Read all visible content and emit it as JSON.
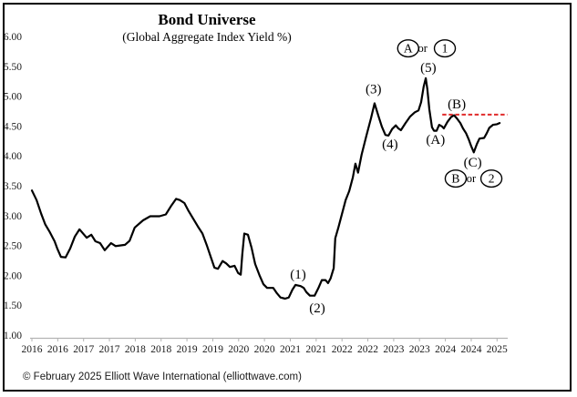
{
  "header": {
    "title": "Bond Universe",
    "subtitle": "(Global Aggregate Index Yield %)"
  },
  "footer": {
    "copyright": "© February 2025 Elliott Wave International (elliottwave.com)"
  },
  "colors": {
    "line": "#000000",
    "resistance": "#e02b2b",
    "axis": "#b3b3b3",
    "text": "#1a1a1a"
  },
  "chart_data": {
    "type": "line",
    "title": "Bond Universe",
    "subtitle": "(Global Aggregate Index Yield %)",
    "series_name": "Global Aggregate Index Yield %",
    "ylim": [
      1.0,
      6.0
    ],
    "xlim": [
      2016.0,
      2025.2
    ],
    "grid": false,
    "legend": "none",
    "y_tick_labels": [
      "6.00",
      "5.50",
      "5.00",
      "4.50",
      "4.00",
      "3.50",
      "3.00",
      "2.50",
      "2.00",
      "1.50",
      "1.00"
    ],
    "y_tick_values": [
      6.0,
      5.5,
      5.0,
      4.5,
      4.0,
      3.5,
      3.0,
      2.5,
      2.0,
      1.5,
      1.0
    ],
    "x_tick_labels": [
      "2016",
      "2016",
      "2017",
      "2017",
      "2018",
      "2018",
      "2019",
      "2019",
      "2020",
      "2020",
      "2021",
      "2021",
      "2022",
      "2022",
      "2023",
      "2023",
      "2024",
      "2024",
      "2025"
    ],
    "x_tick_values": [
      2016,
      2016.5,
      2017,
      2017.5,
      2018,
      2018.5,
      2019,
      2019.5,
      2020,
      2020.5,
      2021,
      2021.5,
      2022,
      2022.5,
      2023,
      2023.5,
      2024,
      2024.5,
      2025
    ],
    "points": [
      [
        2016.0,
        3.42
      ],
      [
        2016.09,
        3.26
      ],
      [
        2016.18,
        3.03
      ],
      [
        2016.26,
        2.85
      ],
      [
        2016.35,
        2.72
      ],
      [
        2016.44,
        2.57
      ],
      [
        2016.49,
        2.45
      ],
      [
        2016.56,
        2.31
      ],
      [
        2016.65,
        2.3
      ],
      [
        2016.74,
        2.45
      ],
      [
        2016.83,
        2.65
      ],
      [
        2016.92,
        2.77
      ],
      [
        2017.01,
        2.68
      ],
      [
        2017.06,
        2.63
      ],
      [
        2017.15,
        2.68
      ],
      [
        2017.23,
        2.57
      ],
      [
        2017.32,
        2.54
      ],
      [
        2017.41,
        2.42
      ],
      [
        2017.53,
        2.54
      ],
      [
        2017.62,
        2.49
      ],
      [
        2017.8,
        2.51
      ],
      [
        2017.89,
        2.58
      ],
      [
        2017.99,
        2.8
      ],
      [
        2018.15,
        2.92
      ],
      [
        2018.29,
        2.99
      ],
      [
        2018.47,
        2.99
      ],
      [
        2018.59,
        3.02
      ],
      [
        2018.7,
        3.17
      ],
      [
        2018.79,
        3.28
      ],
      [
        2018.86,
        3.26
      ],
      [
        2018.95,
        3.21
      ],
      [
        2019.03,
        3.08
      ],
      [
        2019.12,
        2.95
      ],
      [
        2019.21,
        2.82
      ],
      [
        2019.3,
        2.7
      ],
      [
        2019.39,
        2.49
      ],
      [
        2019.46,
        2.31
      ],
      [
        2019.53,
        2.13
      ],
      [
        2019.6,
        2.11
      ],
      [
        2019.69,
        2.24
      ],
      [
        2019.76,
        2.2
      ],
      [
        2019.83,
        2.14
      ],
      [
        2019.92,
        2.16
      ],
      [
        2019.99,
        2.04
      ],
      [
        2020.04,
        2.01
      ],
      [
        2020.07,
        2.35
      ],
      [
        2020.11,
        2.7
      ],
      [
        2020.18,
        2.68
      ],
      [
        2020.25,
        2.46
      ],
      [
        2020.32,
        2.19
      ],
      [
        2020.41,
        1.99
      ],
      [
        2020.48,
        1.85
      ],
      [
        2020.55,
        1.79
      ],
      [
        2020.67,
        1.79
      ],
      [
        2020.74,
        1.7
      ],
      [
        2020.81,
        1.63
      ],
      [
        2020.9,
        1.61
      ],
      [
        2020.97,
        1.63
      ],
      [
        2021.04,
        1.76
      ],
      [
        2021.1,
        1.84
      ],
      [
        2021.2,
        1.82
      ],
      [
        2021.26,
        1.79
      ],
      [
        2021.31,
        1.72
      ],
      [
        2021.38,
        1.66
      ],
      [
        2021.47,
        1.66
      ],
      [
        2021.54,
        1.78
      ],
      [
        2021.61,
        1.92
      ],
      [
        2021.68,
        1.92
      ],
      [
        2021.73,
        1.87
      ],
      [
        2021.78,
        1.95
      ],
      [
        2021.84,
        2.12
      ],
      [
        2021.87,
        2.62
      ],
      [
        2021.93,
        2.8
      ],
      [
        2022.0,
        3.03
      ],
      [
        2022.07,
        3.26
      ],
      [
        2022.14,
        3.41
      ],
      [
        2022.21,
        3.64
      ],
      [
        2022.26,
        3.87
      ],
      [
        2022.31,
        3.72
      ],
      [
        2022.38,
        4.02
      ],
      [
        2022.47,
        4.33
      ],
      [
        2022.56,
        4.63
      ],
      [
        2022.63,
        4.88
      ],
      [
        2022.7,
        4.68
      ],
      [
        2022.77,
        4.49
      ],
      [
        2022.84,
        4.35
      ],
      [
        2022.9,
        4.34
      ],
      [
        2022.97,
        4.45
      ],
      [
        2023.04,
        4.51
      ],
      [
        2023.09,
        4.46
      ],
      [
        2023.14,
        4.43
      ],
      [
        2023.23,
        4.55
      ],
      [
        2023.32,
        4.66
      ],
      [
        2023.41,
        4.73
      ],
      [
        2023.48,
        4.76
      ],
      [
        2023.53,
        4.9
      ],
      [
        2023.58,
        5.16
      ],
      [
        2023.62,
        5.3
      ],
      [
        2023.65,
        5.12
      ],
      [
        2023.69,
        4.78
      ],
      [
        2023.74,
        4.48
      ],
      [
        2023.78,
        4.42
      ],
      [
        2023.83,
        4.42
      ],
      [
        2023.88,
        4.52
      ],
      [
        2023.94,
        4.49
      ],
      [
        2023.97,
        4.46
      ],
      [
        2024.04,
        4.57
      ],
      [
        2024.11,
        4.65
      ],
      [
        2024.17,
        4.68
      ],
      [
        2024.22,
        4.63
      ],
      [
        2024.29,
        4.55
      ],
      [
        2024.34,
        4.46
      ],
      [
        2024.4,
        4.38
      ],
      [
        2024.45,
        4.28
      ],
      [
        2024.5,
        4.16
      ],
      [
        2024.55,
        4.06
      ],
      [
        2024.61,
        4.2
      ],
      [
        2024.66,
        4.29
      ],
      [
        2024.75,
        4.3
      ],
      [
        2024.8,
        4.38
      ],
      [
        2024.85,
        4.47
      ],
      [
        2024.92,
        4.52
      ],
      [
        2025.0,
        4.53
      ],
      [
        2025.05,
        4.55
      ]
    ],
    "resistance_line": {
      "value": 4.69,
      "x_start": 2023.94,
      "x_end": 2025.2,
      "style": "dashed",
      "color": "#e02b2b"
    },
    "annotations": [
      {
        "text": "(1)",
        "year": 2021.15,
        "value": 2.02,
        "circled": false,
        "small": false
      },
      {
        "text": "(2)",
        "year": 2021.52,
        "value": 1.46,
        "circled": false,
        "small": false
      },
      {
        "text": "(3)",
        "year": 2022.61,
        "value": 5.12,
        "circled": false,
        "small": false
      },
      {
        "text": "(4)",
        "year": 2022.93,
        "value": 4.2,
        "circled": false,
        "small": false
      },
      {
        "text": "(5)",
        "year": 2023.67,
        "value": 5.48,
        "circled": false,
        "small": false
      },
      {
        "text": "(A)",
        "year": 2023.81,
        "value": 4.28,
        "circled": false,
        "small": false
      },
      {
        "text": "(B)",
        "year": 2024.22,
        "value": 4.87,
        "circled": false,
        "small": false
      },
      {
        "text": "(C)",
        "year": 2024.53,
        "value": 3.9,
        "circled": false,
        "small": false
      },
      {
        "text": "A",
        "year": 2023.28,
        "value": 5.8,
        "circled": true,
        "small": false
      },
      {
        "text": "or",
        "year": 2023.56,
        "value": 5.8,
        "circled": false,
        "small": true
      },
      {
        "text": "1",
        "year": 2023.99,
        "value": 5.8,
        "circled": true,
        "small": false
      },
      {
        "text": "B",
        "year": 2024.2,
        "value": 3.62,
        "circled": true,
        "small": false
      },
      {
        "text": "or",
        "year": 2024.5,
        "value": 3.62,
        "circled": false,
        "small": true
      },
      {
        "text": "2",
        "year": 2024.89,
        "value": 3.62,
        "circled": true,
        "small": false
      }
    ]
  }
}
